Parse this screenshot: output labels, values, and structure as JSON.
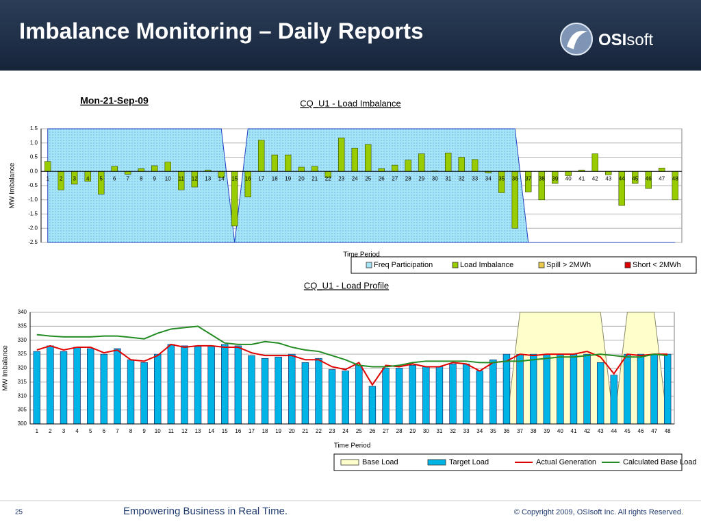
{
  "header": {
    "title": "Imbalance Monitoring – Daily Reports",
    "logo": {
      "bold": "OSI",
      "light": "soft"
    }
  },
  "date": "Mon-21-Sep-09",
  "chart_data": [
    {
      "type": "bar",
      "title": "CQ_U1 - Load Imbalance",
      "x_label": "Time Period",
      "y_label": "MW Imbalance",
      "categories": [
        "1",
        "2",
        "3",
        "4",
        "5",
        "6",
        "7",
        "8",
        "9",
        "10",
        "11",
        "12",
        "13",
        "14",
        "15",
        "16",
        "17",
        "18",
        "19",
        "20",
        "21",
        "22",
        "23",
        "24",
        "25",
        "26",
        "27",
        "28",
        "29",
        "30",
        "31",
        "32",
        "33",
        "34",
        "35",
        "36",
        "37",
        "38",
        "39",
        "40",
        "41",
        "42",
        "43",
        "44",
        "45",
        "46",
        "47",
        "48"
      ],
      "series": [
        {
          "name": "Freq Participation",
          "color": "#a6e4f7",
          "mark": "area",
          "values": [
            1.5,
            1.5,
            1.5,
            1.5,
            1.5,
            1.5,
            1.5,
            1.5,
            1.5,
            1.5,
            1.5,
            1.5,
            1.5,
            1.5,
            -2.5,
            1.5,
            1.5,
            1.5,
            1.5,
            1.5,
            1.5,
            1.5,
            1.5,
            1.5,
            1.5,
            1.5,
            1.5,
            1.5,
            1.5,
            1.5,
            1.5,
            1.5,
            1.5,
            1.5,
            1.5,
            1.5,
            -2.5,
            -2.5,
            -2.5,
            -2.5,
            -2.5,
            -2.5,
            -2.5,
            -2.5,
            -2.5,
            -2.5,
            -2.5,
            -2.5
          ]
        },
        {
          "name": "Load Imbalance",
          "color": "#99cc00",
          "mark": "bar",
          "values": [
            0.35,
            -0.65,
            -0.45,
            -0.35,
            -0.8,
            0.18,
            -0.1,
            0.1,
            0.2,
            0.33,
            -0.65,
            -0.55,
            0.05,
            -0.22,
            -1.92,
            -0.9,
            1.1,
            0.58,
            0.58,
            0.15,
            0.18,
            -0.22,
            1.18,
            0.82,
            0.95,
            0.1,
            0.22,
            0.4,
            0.62,
            0.02,
            0.65,
            0.5,
            0.42,
            -0.05,
            -0.75,
            -2.0,
            -0.72,
            -1.0,
            -0.42,
            -0.15,
            0.05,
            0.62,
            -0.12,
            -1.2,
            -0.42,
            -0.6,
            0.12,
            -1.0
          ]
        },
        {
          "name": "Spill > 2MWh",
          "color": "#e6c84a",
          "mark": "bar",
          "values": [
            null,
            null,
            null,
            null,
            null,
            null,
            null,
            null,
            null,
            null,
            null,
            null,
            null,
            null,
            null,
            null,
            null,
            null,
            null,
            null,
            null,
            null,
            null,
            null,
            null,
            null,
            null,
            null,
            null,
            null,
            null,
            null,
            null,
            null,
            null,
            null,
            null,
            null,
            null,
            null,
            null,
            null,
            null,
            null,
            null,
            null,
            null,
            null
          ]
        },
        {
          "name": "Short < 2MWh",
          "color": "#dd0000",
          "mark": "bar",
          "values": [
            null,
            null,
            null,
            null,
            null,
            null,
            null,
            null,
            null,
            null,
            null,
            null,
            null,
            null,
            null,
            null,
            null,
            null,
            null,
            null,
            null,
            null,
            null,
            null,
            null,
            null,
            null,
            null,
            null,
            null,
            null,
            null,
            null,
            null,
            null,
            null,
            null,
            null,
            null,
            null,
            null,
            null,
            null,
            null,
            null,
            null,
            null,
            null
          ]
        }
      ],
      "ylim": [
        -2.5,
        1.5
      ],
      "yticks": [
        -2.5,
        {
          "value": -2,
          "label": "-2.0"
        },
        -1.5,
        {
          "value": -1,
          "label": "-1.0"
        },
        -0.5,
        {
          "value": 0,
          "label": "0.0"
        },
        0.5,
        {
          "value": 1,
          "label": "1.0"
        },
        1.5
      ],
      "grid": true
    },
    {
      "type": "bar",
      "title": "CQ_U1 - Load Profile",
      "x_label": "Time Period",
      "y_label": "MW Imbalance",
      "categories": [
        "1",
        "2",
        "3",
        "4",
        "5",
        "6",
        "7",
        "8",
        "9",
        "10",
        "11",
        "12",
        "13",
        "14",
        "15",
        "16",
        "17",
        "18",
        "19",
        "20",
        "21",
        "22",
        "23",
        "24",
        "25",
        "26",
        "27",
        "28",
        "29",
        "30",
        "31",
        "32",
        "33",
        "34",
        "35",
        "36",
        "37",
        "38",
        "39",
        "40",
        "41",
        "42",
        "43",
        "44",
        "45",
        "46",
        "47",
        "48"
      ],
      "series": [
        {
          "name": "Base Load",
          "color": "#ffffcc",
          "mark": "area",
          "values": [
            300,
            300,
            300,
            300,
            300,
            300,
            300,
            300,
            300,
            300,
            300,
            300,
            300,
            300,
            300,
            300,
            300,
            300,
            300,
            300,
            300,
            300,
            300,
            300,
            300,
            300,
            300,
            300,
            300,
            300,
            300,
            300,
            300,
            300,
            300,
            300,
            340,
            340,
            340,
            340,
            340,
            340,
            340,
            300,
            340,
            340,
            340,
            300
          ]
        },
        {
          "name": "Target Load",
          "color": "#00b4e6",
          "mark": "bar",
          "values": [
            326,
            328,
            326,
            327.5,
            327,
            325,
            327,
            323,
            322,
            325,
            328.5,
            328,
            328,
            328,
            328.5,
            328,
            324.5,
            323.5,
            324,
            325,
            322,
            323.5,
            319.5,
            319,
            321,
            313.5,
            320,
            320,
            321,
            320.5,
            320.5,
            321.5,
            321.5,
            319,
            323,
            325,
            325,
            325,
            325,
            325,
            325,
            325,
            322,
            317.5,
            325,
            325,
            325,
            325
          ]
        },
        {
          "name": "Actual Generation",
          "color": "#e00000",
          "mark": "line",
          "values": [
            326.5,
            328,
            326.5,
            327.5,
            327.5,
            325.5,
            326.5,
            323,
            322.5,
            324.5,
            328.5,
            327.5,
            328,
            328,
            327.5,
            327.5,
            325.5,
            324.5,
            324.5,
            324.5,
            323,
            323,
            320.5,
            319.5,
            322,
            314,
            321,
            320.5,
            321.5,
            320.5,
            320.5,
            322,
            321.5,
            319,
            322,
            322.5,
            325,
            324.5,
            325,
            325,
            325,
            326,
            324,
            318,
            325,
            324.5,
            325,
            325
          ]
        },
        {
          "name": "Calculated Base Load",
          "color": "#228b22",
          "mark": "line",
          "values": [
            332,
            331.5,
            331.2,
            331.2,
            331.2,
            331.5,
            331.5,
            331,
            330.5,
            332.5,
            334,
            334.5,
            335,
            332,
            329,
            328.5,
            328.5,
            329.5,
            329,
            327.5,
            326.5,
            326,
            324.5,
            323,
            321,
            320.5,
            320.5,
            321,
            322,
            322.5,
            322.5,
            322.5,
            322.5,
            322,
            322,
            322.5,
            322.5,
            323,
            323.5,
            324,
            324,
            324.5,
            325,
            324.5,
            324,
            324,
            325,
            324.5
          ]
        }
      ],
      "ylim": [
        300,
        340
      ],
      "yticks": [
        300,
        305,
        310,
        315,
        320,
        325,
        330,
        335,
        340
      ],
      "grid": true
    }
  ],
  "footer": {
    "page": "25",
    "tagline": "Empowering Business in Real Time.",
    "copyright": "© Copyright 2009, OSIsoft Inc.  All rights Reserved."
  }
}
